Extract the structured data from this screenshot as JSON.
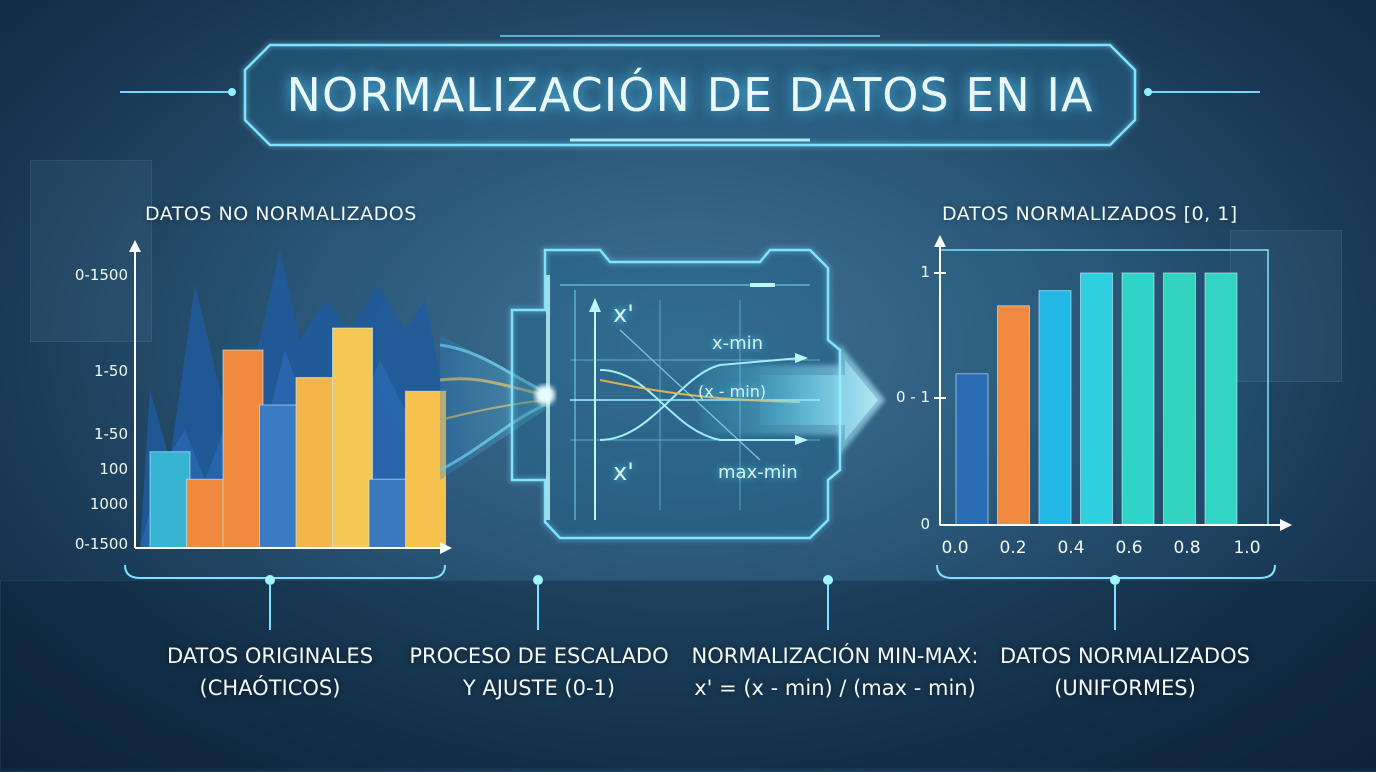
{
  "title": "NORMALIZACIÓN DE DATOS EN IA",
  "left_panel": {
    "heading": "DATOS NO NORMALIZADOS",
    "y_labels": [
      "0-1500",
      "1-50",
      "1-50",
      "100",
      "1000",
      "0-1500"
    ]
  },
  "right_panel": {
    "heading": "DATOS NORMALIZADOS [0, 1]",
    "y_labels": [
      "1",
      "0 - 1",
      "0"
    ],
    "x_labels": [
      "0.0",
      "0.2",
      "0.4",
      "0.6",
      "0.8",
      "1.0"
    ]
  },
  "process": {
    "x_prime_top": "x'",
    "x_prime_bottom": "x'",
    "x_min": "x-min",
    "x_min_paren": "(x - min)",
    "max_min": "max-min"
  },
  "captions": {
    "original": [
      "DATOS ORIGINALES",
      "(CHAÓTICOS)"
    ],
    "process": [
      "PROCESO DE ESCALADO",
      "Y AJUSTE (0-1)"
    ],
    "formula": [
      "NORMALIZACIÓN MIN-MAX:",
      "x' = (x - min) / (max - min)"
    ],
    "normalized": [
      "DATOS NORMALIZADOS",
      "(UNIFORMES)"
    ]
  },
  "chart_data": [
    {
      "type": "bar",
      "title": "DATOS NO NORMALIZADOS",
      "y_tick_labels": [
        "0-1500",
        "1-50",
        "1-50",
        "100",
        "1000",
        "0-1500"
      ],
      "values": [
        0.35,
        0.25,
        0.72,
        0.52,
        0.62,
        0.8,
        0.25,
        0.57
      ],
      "colors": [
        "#36b4d2",
        "#ef8a3c",
        "#f08a3e",
        "#3a7cc4",
        "#f4b64a",
        "#f5c855",
        "#3a79c0",
        "#f6c14c"
      ]
    },
    {
      "type": "bar",
      "title": "DATOS NORMALIZADOS [0, 1]",
      "x_tick_labels": [
        "0.0",
        "0.2",
        "0.4",
        "0.6",
        "0.8",
        "1.0"
      ],
      "y_tick_labels": [
        "1",
        "0 - 1",
        "0"
      ],
      "ylim": [
        0,
        1
      ],
      "values": [
        0.6,
        0.87,
        0.93,
        1.0,
        1.0,
        1.0,
        1.0
      ],
      "colors": [
        "#2a6cb3",
        "#f08a3e",
        "#22b8e6",
        "#2ed0e0",
        "#30d3c8",
        "#32d4c0",
        "#33d4c4"
      ]
    }
  ]
}
